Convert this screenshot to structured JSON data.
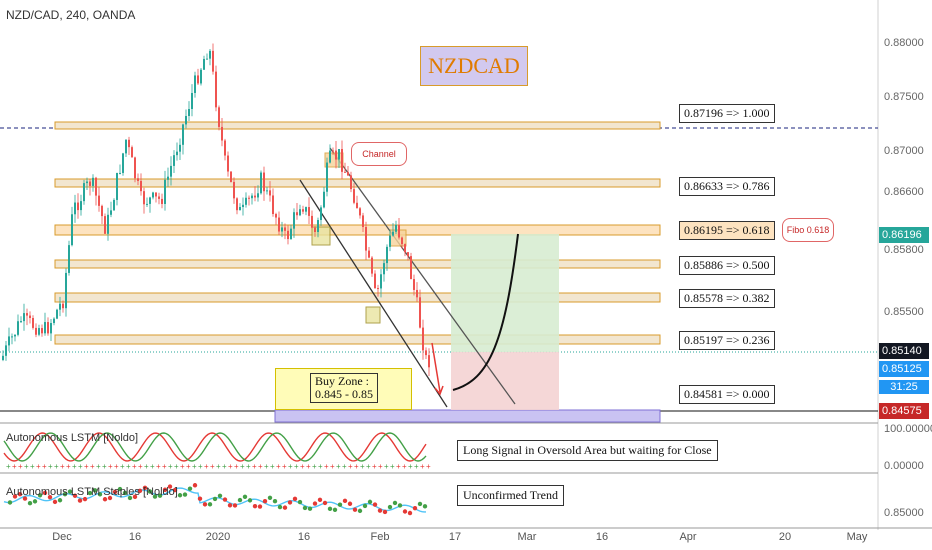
{
  "symbol_line": "NZD/CAD, 240, OANDA",
  "title_label": "NZDCAD",
  "price_axis": {
    "ticks": [
      "0.88000",
      "0.87500",
      "0.87000",
      "0.86600",
      "0.86196",
      "0.85800",
      "0.85500",
      "0.85140",
      "0.85125",
      "0.84575"
    ],
    "current_price": "0.86196",
    "current_price2": "0.85140",
    "current_price3": "0.85125",
    "timer": "31:25",
    "low_price": "0.84575",
    "colors": {
      "current_bg": "#26a69a",
      "dark_bg": "#131722",
      "blue_bg": "#2196f3",
      "red_bg": "#c62828"
    }
  },
  "fib_levels": [
    {
      "label": "0.87196 => 1.000"
    },
    {
      "label": "0.86633 => 0.786"
    },
    {
      "label": "0.86195 => 0.618"
    },
    {
      "label": "0.85886 => 0.500"
    },
    {
      "label": "0.85578 => 0.382"
    },
    {
      "label": "0.85197 => 0.236"
    },
    {
      "label": "0.84581 => 0.000"
    }
  ],
  "callouts": {
    "channel": "Channel",
    "fibo": "Fibo 0.618"
  },
  "buy_zone": {
    "line1": "Buy Zone :",
    "line2": "0.845 - 0.85"
  },
  "indicators": [
    {
      "name": "Autonomous LSTM [Noldo]",
      "note": "Long Signal in Oversold Area but waiting for Close",
      "ticks": [
        "100.00000",
        "0.00000"
      ]
    },
    {
      "name": "Autonomous LSTM Staples [Noldo]",
      "note": "Unconfirmed Trend",
      "ticks": [
        "0.85000"
      ]
    }
  ],
  "x_axis": [
    "Dec",
    "16",
    "2020",
    "16",
    "Feb",
    "17",
    "Mar",
    "16",
    "Apr",
    "20",
    "May"
  ],
  "colors": {
    "candle_up": "#26a69a",
    "candle_down": "#ef5350",
    "fib_fill": "#f2e6d0",
    "fib_border": "#d89b2b",
    "channel": "#555555"
  }
}
